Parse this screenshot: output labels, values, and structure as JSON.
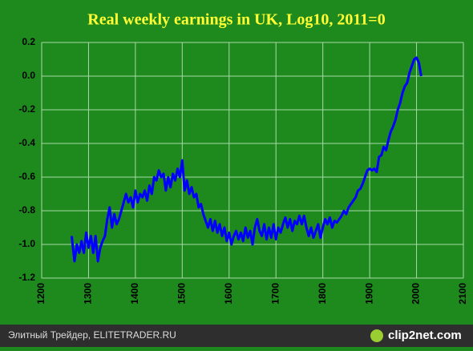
{
  "chart_data": {
    "type": "line",
    "title": "Real weekly earnings in UK, Log10, 2011=0",
    "x": [
      1264,
      1270,
      1275,
      1280,
      1285,
      1290,
      1295,
      1300,
      1305,
      1310,
      1315,
      1320,
      1325,
      1330,
      1335,
      1340,
      1345,
      1350,
      1355,
      1360,
      1365,
      1370,
      1375,
      1380,
      1385,
      1390,
      1395,
      1400,
      1405,
      1410,
      1415,
      1420,
      1425,
      1430,
      1435,
      1440,
      1445,
      1450,
      1455,
      1460,
      1465,
      1470,
      1475,
      1480,
      1485,
      1490,
      1495,
      1500,
      1505,
      1510,
      1515,
      1520,
      1525,
      1530,
      1535,
      1540,
      1545,
      1550,
      1555,
      1560,
      1565,
      1570,
      1575,
      1580,
      1585,
      1590,
      1595,
      1600,
      1605,
      1610,
      1615,
      1620,
      1625,
      1630,
      1635,
      1640,
      1645,
      1650,
      1655,
      1660,
      1665,
      1670,
      1675,
      1680,
      1685,
      1690,
      1695,
      1700,
      1705,
      1710,
      1715,
      1720,
      1725,
      1730,
      1735,
      1740,
      1745,
      1750,
      1755,
      1760,
      1765,
      1770,
      1775,
      1780,
      1785,
      1790,
      1795,
      1800,
      1805,
      1810,
      1815,
      1820,
      1825,
      1830,
      1835,
      1840,
      1845,
      1850,
      1855,
      1860,
      1865,
      1870,
      1875,
      1880,
      1885,
      1890,
      1895,
      1900,
      1905,
      1910,
      1915,
      1920,
      1925,
      1930,
      1935,
      1940,
      1945,
      1950,
      1955,
      1960,
      1965,
      1970,
      1975,
      1980,
      1985,
      1990,
      1995,
      2000,
      2005,
      2010
    ],
    "series": [
      {
        "name": "UK",
        "color": "#0000ff",
        "values": [
          -0.95,
          -1.1,
          -1.0,
          -1.05,
          -0.98,
          -1.05,
          -0.93,
          -1.02,
          -0.95,
          -1.05,
          -0.95,
          -1.1,
          -1.02,
          -0.98,
          -0.95,
          -0.85,
          -0.78,
          -0.9,
          -0.82,
          -0.88,
          -0.85,
          -0.8,
          -0.75,
          -0.7,
          -0.75,
          -0.72,
          -0.78,
          -0.68,
          -0.75,
          -0.7,
          -0.72,
          -0.68,
          -0.74,
          -0.65,
          -0.7,
          -0.6,
          -0.62,
          -0.56,
          -0.6,
          -0.58,
          -0.68,
          -0.6,
          -0.66,
          -0.58,
          -0.62,
          -0.55,
          -0.6,
          -0.5,
          -0.68,
          -0.62,
          -0.7,
          -0.66,
          -0.72,
          -0.7,
          -0.78,
          -0.76,
          -0.82,
          -0.86,
          -0.9,
          -0.85,
          -0.92,
          -0.86,
          -0.93,
          -0.88,
          -0.95,
          -0.9,
          -0.98,
          -0.93,
          -1.0,
          -0.95,
          -0.92,
          -0.97,
          -0.93,
          -0.98,
          -0.9,
          -0.96,
          -0.92,
          -1.0,
          -0.9,
          -0.85,
          -0.92,
          -0.95,
          -0.88,
          -0.97,
          -0.9,
          -0.96,
          -0.88,
          -0.97,
          -0.9,
          -0.93,
          -0.88,
          -0.84,
          -0.9,
          -0.85,
          -0.92,
          -0.86,
          -0.88,
          -0.83,
          -0.88,
          -0.83,
          -0.9,
          -0.95,
          -0.9,
          -0.96,
          -0.92,
          -0.88,
          -0.96,
          -0.9,
          -0.85,
          -0.88,
          -0.84,
          -0.9,
          -0.86,
          -0.87,
          -0.85,
          -0.83,
          -0.8,
          -0.82,
          -0.78,
          -0.76,
          -0.74,
          -0.72,
          -0.68,
          -0.67,
          -0.64,
          -0.6,
          -0.56,
          -0.55,
          -0.56,
          -0.55,
          -0.57,
          -0.48,
          -0.47,
          -0.42,
          -0.44,
          -0.38,
          -0.33,
          -0.3,
          -0.26,
          -0.2,
          -0.16,
          -0.1,
          -0.06,
          -0.04,
          0.02,
          0.06,
          0.1,
          0.11,
          0.08,
          0.0
        ]
      }
    ],
    "xlim": [
      1200,
      2100
    ],
    "xticks": [
      1200,
      1300,
      1400,
      1500,
      1600,
      1700,
      1800,
      1900,
      2000,
      2100
    ],
    "ylim": [
      -1.2,
      0.2
    ],
    "yticks": [
      0.2,
      {
        "value": 0,
        "label": "0.0"
      },
      -0.2,
      -0.4,
      -0.6,
      -0.8,
      {
        "value": -1,
        "label": "-1.0"
      },
      -1.2
    ],
    "grid": true
  },
  "footer": {
    "left": "Элитный Трейдер, ELITETRADER.RU",
    "right": "clip2net.com"
  }
}
